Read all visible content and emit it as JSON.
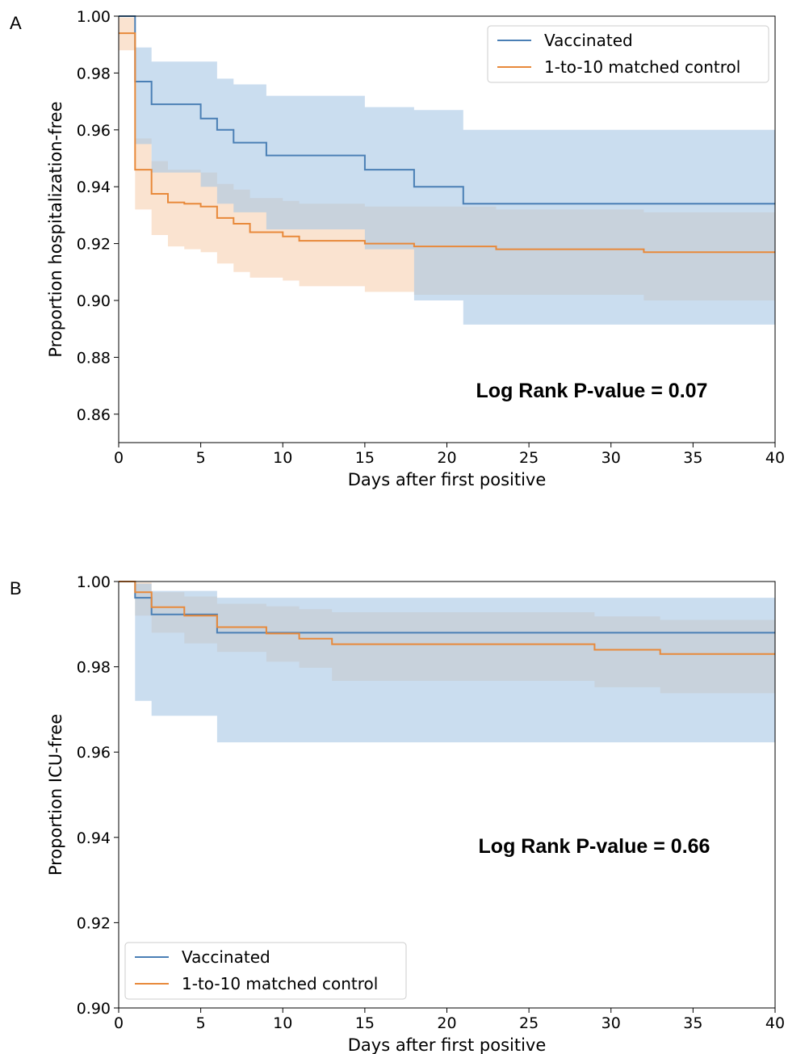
{
  "colors": {
    "vaccinated": "#4a7fb5",
    "control": "#e8893a",
    "vaccinated_band": "#a7c6e4",
    "control_band": "#f6c8a2",
    "overlap_band": "#c7b2a3"
  },
  "chart_data": [
    {
      "type": "line",
      "panel_label": "A",
      "xlabel": "Days after first positive",
      "ylabel": "Proportion hospitalization-free",
      "xlim": [
        0,
        40
      ],
      "ylim": [
        0.85,
        1.0
      ],
      "xticks": [
        0,
        5,
        10,
        15,
        20,
        25,
        30,
        35,
        40
      ],
      "xtick_labels": [
        "0",
        "5",
        "10",
        "15",
        "20",
        "25",
        "30",
        "35",
        "40"
      ],
      "yticks": [
        0.86,
        0.88,
        0.9,
        0.92,
        0.94,
        0.96,
        0.98,
        1.0
      ],
      "ytick_labels": [
        "0.86",
        "0.88",
        "0.90",
        "0.92",
        "0.94",
        "0.96",
        "0.98",
        "1.00"
      ],
      "annotation": "Log Rank P-value = 0.07",
      "legend": {
        "location": "top-right",
        "entries": [
          "Vaccinated",
          "1-to-10 matched control"
        ]
      },
      "series": [
        {
          "name": "Vaccinated",
          "style": "step",
          "x": [
            0,
            1,
            2,
            5,
            6,
            7,
            9,
            15,
            18,
            21,
            40
          ],
          "y": [
            1.0,
            0.977,
            0.969,
            0.964,
            0.96,
            0.9555,
            0.951,
            0.946,
            0.94,
            0.934,
            0.934
          ],
          "ci_upper": [
            1.0,
            0.989,
            0.984,
            0.984,
            0.978,
            0.976,
            0.972,
            0.968,
            0.967,
            0.96,
            0.96
          ],
          "ci_lower": [
            1.0,
            0.955,
            0.945,
            0.94,
            0.934,
            0.931,
            0.925,
            0.918,
            0.9,
            0.8915,
            0.8915
          ]
        },
        {
          "name": "1-to-10 matched control",
          "style": "step",
          "x": [
            0,
            1,
            2,
            3,
            4,
            5,
            6,
            7,
            8,
            10,
            11,
            15,
            18,
            23,
            32,
            40
          ],
          "y": [
            0.994,
            0.946,
            0.9375,
            0.9345,
            0.934,
            0.933,
            0.929,
            0.927,
            0.924,
            0.9225,
            0.921,
            0.92,
            0.919,
            0.918,
            0.917,
            0.917
          ],
          "ci_upper": [
            0.9995,
            0.957,
            0.949,
            0.946,
            0.946,
            0.945,
            0.941,
            0.939,
            0.936,
            0.935,
            0.934,
            0.933,
            0.933,
            0.932,
            0.931,
            0.931
          ],
          "ci_lower": [
            0.988,
            0.932,
            0.923,
            0.919,
            0.918,
            0.917,
            0.913,
            0.91,
            0.908,
            0.907,
            0.905,
            0.903,
            0.902,
            0.902,
            0.9,
            0.9
          ]
        }
      ]
    },
    {
      "type": "line",
      "panel_label": "B",
      "xlabel": "Days after first positive",
      "ylabel": "Proportion ICU-free",
      "xlim": [
        0,
        40
      ],
      "ylim": [
        0.9,
        1.0
      ],
      "xticks": [
        0,
        5,
        10,
        15,
        20,
        25,
        30,
        35,
        40
      ],
      "xtick_labels": [
        "0",
        "5",
        "10",
        "15",
        "20",
        "25",
        "30",
        "35",
        "40"
      ],
      "yticks": [
        0.9,
        0.92,
        0.94,
        0.96,
        0.98,
        1.0
      ],
      "ytick_labels": [
        "0.90",
        "0.92",
        "0.94",
        "0.96",
        "0.98",
        "1.00"
      ],
      "annotation": "Log Rank P-value = 0.66",
      "legend": {
        "location": "bottom-left",
        "entries": [
          "Vaccinated",
          "1-to-10 matched control"
        ]
      },
      "series": [
        {
          "name": "Vaccinated",
          "style": "step",
          "x": [
            0,
            1,
            2,
            6,
            40
          ],
          "y": [
            1.0,
            0.9962,
            0.9923,
            0.988,
            0.988
          ],
          "ci_upper": [
            1.0,
            0.9995,
            0.9978,
            0.9962,
            0.9962
          ],
          "ci_lower": [
            1.0,
            0.972,
            0.9685,
            0.9623,
            0.9623
          ]
        },
        {
          "name": "1-to-10 matched control",
          "style": "step",
          "x": [
            0,
            1,
            2,
            4,
            6,
            9,
            11,
            13,
            29,
            33,
            40
          ],
          "y": [
            1.0,
            0.9975,
            0.994,
            0.992,
            0.9893,
            0.9878,
            0.9866,
            0.9853,
            0.984,
            0.983,
            0.983
          ],
          "ci_upper": [
            1.0,
            0.9998,
            0.9975,
            0.9965,
            0.9948,
            0.9942,
            0.9935,
            0.9928,
            0.9918,
            0.991,
            0.991
          ],
          "ci_lower": [
            1.0,
            0.992,
            0.988,
            0.9855,
            0.9835,
            0.9812,
            0.9798,
            0.9767,
            0.9752,
            0.9738,
            0.9738
          ]
        }
      ]
    }
  ]
}
